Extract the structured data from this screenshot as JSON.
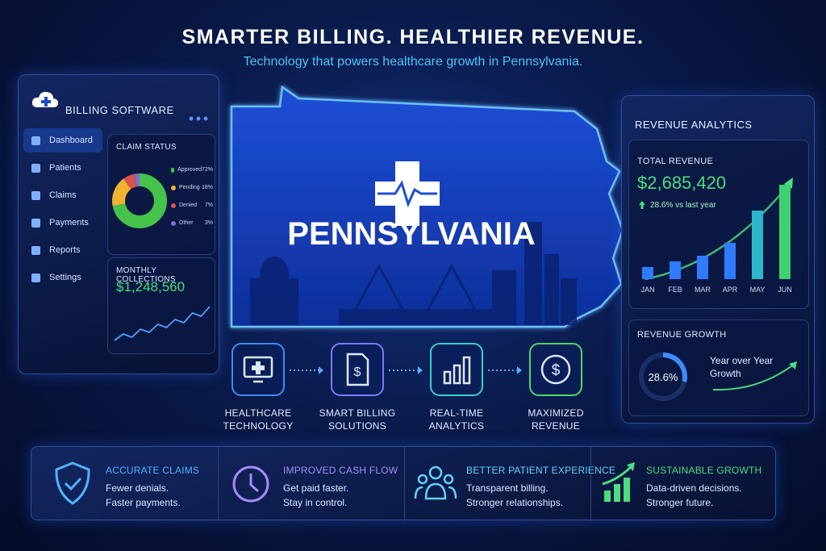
{
  "header": {
    "title": "SMARTER BILLING. HEALTHIER REVENUE.",
    "subtitle": "Technology that powers healthcare growth in Pennsylvania."
  },
  "billing_panel": {
    "title": "BILLING SOFTWARE",
    "nav": [
      "Dashboard",
      "Patients",
      "Claims",
      "Payments",
      "Reports",
      "Settings"
    ],
    "claim_status": {
      "title": "CLAIM STATUS",
      "items": [
        {
          "label": "Approved",
          "value": 72,
          "value_label": "72%",
          "color": "#45c24a"
        },
        {
          "label": "Pending",
          "value": 18,
          "value_label": "18%",
          "color": "#f2b230"
        },
        {
          "label": "Denied",
          "value": 7,
          "value_label": "7%",
          "color": "#d9534f"
        },
        {
          "label": "Other",
          "value": 3,
          "value_label": "3%",
          "color": "#7b6fd6"
        }
      ]
    },
    "monthly_collections": {
      "title": "MONTHLY COLLECTIONS",
      "amount": "$1,248,560",
      "trend": [
        10,
        18,
        14,
        24,
        20,
        30,
        26,
        36,
        32,
        44,
        40,
        52
      ]
    }
  },
  "map": {
    "label": "PENNSYLVANIA"
  },
  "steps": [
    "HEALTHCARE TECHNOLOGY",
    "SMART BILLING SOLUTIONS",
    "REAL-TIME ANALYTICS",
    "MAXIMIZED REVENUE"
  ],
  "analytics_panel": {
    "title": "REVENUE ANALYTICS",
    "total": {
      "title": "TOTAL REVENUE",
      "amount": "$2,685,420",
      "change": "28.6% vs last year"
    },
    "bars": {
      "categories": [
        "JAN",
        "FEB",
        "MAR",
        "APR",
        "MAY",
        "JUN"
      ],
      "values": [
        15,
        22,
        29,
        45,
        85,
        117
      ]
    },
    "growth": {
      "title": "REVENUE GROWTH",
      "value": 28.6,
      "value_label": "28.6%",
      "caption": "Year over Year Growth"
    }
  },
  "benefits": [
    {
      "title": "ACCURATE CLAIMS",
      "lines": [
        "Fewer denials.",
        "Faster payments."
      ]
    },
    {
      "title": "IMPROVED CASH FLOW",
      "lines": [
        "Get paid faster.",
        "Stay in control."
      ]
    },
    {
      "title": "BETTER PATIENT EXPERIENCE",
      "lines": [
        "Transparent billing.",
        "Stronger relationships."
      ]
    },
    {
      "title": "SUSTAINABLE GROWTH",
      "lines": [
        "Data-driven decisions.",
        "Stronger future."
      ]
    }
  ]
}
